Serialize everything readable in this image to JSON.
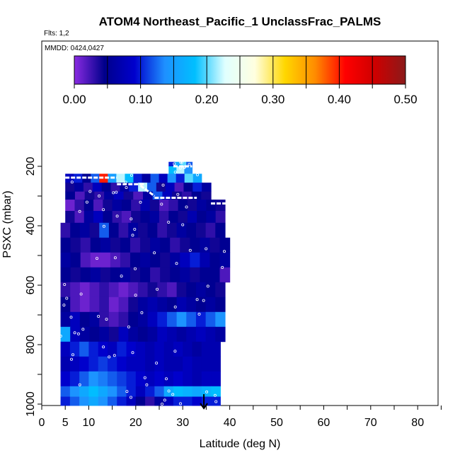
{
  "chart_data": {
    "type": "heatmap",
    "title": "ATOM4 Northeast_Pacific_1 UnclassFrac_PALMS",
    "flights_note": "Flts: 1,2",
    "dates_note": "MMDD: 0424,0427",
    "xlabel": "Latitude (deg N)",
    "ylabel": "PSXC (mbar)",
    "xlim": [
      0,
      85
    ],
    "ylim": [
      1010,
      120
    ],
    "x_ticks": [
      0,
      5,
      10,
      20,
      30,
      40,
      50,
      60,
      70,
      80
    ],
    "y_ticks": [
      200,
      400,
      600,
      800,
      1000
    ],
    "colorbar": {
      "range": [
        0.0,
        0.5
      ],
      "tick_values": [
        0.0,
        0.1,
        0.2,
        0.3,
        0.4,
        0.5
      ],
      "tick_labels": [
        "0.00",
        "0.10",
        "0.20",
        "0.30",
        "0.40",
        "0.50"
      ],
      "colors": [
        "#8a2be2",
        "#00008b",
        "#0000cd",
        "#1e90ff",
        "#00bfff",
        "#e0ffff",
        "#ffffe0",
        "#ffd700",
        "#ff8c00",
        "#ff0000",
        "#cd0000",
        "#8b1a1a"
      ]
    },
    "arrow_marker": {
      "latitude": 34.5,
      "pressure": 1000
    },
    "rows": [
      {
        "p": [
          185,
          200
        ],
        "lat": [
          27,
          32
        ],
        "values": [
          0.1,
          0.16,
          0.2,
          0.12
        ]
      },
      {
        "p": [
          200,
          225
        ],
        "lat": [
          27,
          32
        ],
        "values": [
          0.18,
          0.22,
          0.14
        ]
      },
      {
        "p": [
          225,
          255
        ],
        "lat": [
          5,
          34
        ],
        "values": [
          0.08,
          0.1,
          0.05,
          0.12,
          0.4,
          0.15,
          0.22,
          0.18,
          0.1,
          0.06,
          0.12,
          0.08,
          0.14,
          0.1,
          0.2,
          0.16
        ]
      },
      {
        "p": [
          255,
          285
        ],
        "lat": [
          5,
          36
        ],
        "values": [
          0.04,
          0.06,
          0.03,
          0.08,
          0.05,
          0.03,
          0.06,
          0.1,
          0.22,
          0.12,
          0.04,
          0.08,
          0.02,
          0.05,
          0.1,
          0.06
        ]
      },
      {
        "p": [
          285,
          312
        ],
        "lat": [
          5,
          36
        ],
        "values": [
          0.05,
          0.02,
          0.04,
          0.03,
          0.06,
          0.08,
          0.04,
          0.02,
          0.06,
          0.12,
          0.08,
          0.04,
          0.03,
          0.05,
          0.04
        ]
      },
      {
        "p": [
          312,
          350
        ],
        "lat": [
          5,
          39
        ],
        "values": [
          0.01,
          0.03,
          0.05,
          0.02,
          0.04,
          0.06,
          0.05,
          0.03,
          0.07,
          0.04,
          0.02,
          0.03,
          0.05,
          0.04,
          0.06,
          0.05,
          0.04
        ]
      },
      {
        "p": [
          350,
          390
        ],
        "lat": [
          5,
          39
        ],
        "values": [
          0.04,
          0.02,
          0.06,
          0.08,
          0.05,
          0.03,
          0.02,
          0.04,
          0.05,
          0.06,
          0.03,
          0.05,
          0.04,
          0.07,
          0.05,
          0.06,
          0.03
        ]
      },
      {
        "p": [
          390,
          440
        ],
        "lat": [
          4,
          39
        ],
        "values": [
          0.03,
          0.05,
          0.06,
          0.04,
          0.12,
          0.05,
          0.03,
          0.06,
          0.04,
          0.05,
          0.03,
          0.04,
          0.06,
          0.05,
          0.04,
          0.03,
          0.05
        ]
      },
      {
        "p": [
          440,
          490
        ],
        "lat": [
          4,
          40
        ],
        "values": [
          0.05,
          0.04,
          0.03,
          0.05,
          0.06,
          0.04,
          0.05,
          0.03,
          0.04,
          0.06,
          0.05,
          0.03,
          0.04,
          0.05,
          0.06,
          0.04,
          0.05
        ]
      },
      {
        "p": [
          490,
          540
        ],
        "lat": [
          4,
          40
        ],
        "values": [
          0.06,
          0.05,
          0.02,
          0.01,
          0.01,
          0.02,
          0.03,
          0.05,
          0.06,
          0.05,
          0.04,
          0.06,
          0.08,
          0.1,
          0.07,
          0.05,
          0.06
        ]
      },
      {
        "p": [
          540,
          590
        ],
        "lat": [
          4,
          40
        ],
        "values": [
          0.05,
          0.04,
          0.05,
          0.06,
          0.04,
          0.05,
          0.06,
          0.04,
          0.05,
          0.03,
          0.04,
          0.05,
          0.06,
          0.04,
          0.05,
          0.05,
          0.02
        ]
      },
      {
        "p": [
          590,
          640
        ],
        "lat": [
          4,
          39
        ],
        "values": [
          0.03,
          0.02,
          0.01,
          0.02,
          0.03,
          0.02,
          0.01,
          0.02,
          0.03,
          0.04,
          0.03,
          0.02,
          0.04,
          0.05,
          0.06,
          0.05,
          0.04
        ]
      },
      {
        "p": [
          640,
          690
        ],
        "lat": [
          4,
          39
        ],
        "values": [
          0.05,
          0.02,
          0.01,
          0.02,
          0.03,
          0.01,
          0.02,
          0.04,
          0.06,
          0.07,
          0.06,
          0.05,
          0.07,
          0.06,
          0.05,
          0.06,
          0.05
        ]
      },
      {
        "p": [
          690,
          740
        ],
        "lat": [
          4,
          39
        ],
        "values": [
          0.06,
          0.08,
          0.05,
          0.06,
          0.03,
          0.02,
          0.03,
          0.05,
          0.06,
          0.08,
          0.1,
          0.12,
          0.14,
          0.12,
          0.1,
          0.12,
          0.14
        ]
      },
      {
        "p": [
          740,
          790
        ],
        "lat": [
          4,
          39
        ],
        "values": [
          0.16,
          0.08,
          0.06,
          0.05,
          0.06,
          0.04,
          0.08,
          0.06,
          0.05,
          0.06,
          0.08,
          0.07,
          0.06,
          0.07,
          0.08,
          0.07,
          0.06
        ]
      },
      {
        "p": [
          790,
          840
        ],
        "lat": [
          4,
          38
        ],
        "values": [
          0.08,
          0.1,
          0.12,
          0.1,
          0.09,
          0.08,
          0.1,
          0.09,
          0.08,
          0.07,
          0.08,
          0.07,
          0.08,
          0.07,
          0.06,
          0.07,
          0.07
        ]
      },
      {
        "p": [
          840,
          890
        ],
        "lat": [
          4,
          38
        ],
        "values": [
          0.07,
          0.08,
          0.09,
          0.1,
          0.11,
          0.1,
          0.09,
          0.08,
          0.08,
          0.07,
          0.08,
          0.07,
          0.07,
          0.08,
          0.07,
          0.07,
          0.07
        ]
      },
      {
        "p": [
          890,
          940
        ],
        "lat": [
          4,
          38
        ],
        "values": [
          0.09,
          0.1,
          0.12,
          0.14,
          0.13,
          0.12,
          0.11,
          0.1,
          0.09,
          0.08,
          0.09,
          0.08,
          0.09,
          0.08,
          0.07,
          0.08,
          0.08
        ]
      },
      {
        "p": [
          940,
          975
        ],
        "lat": [
          4,
          38
        ],
        "values": [
          0.12,
          0.14,
          0.16,
          0.18,
          0.16,
          0.14,
          0.12,
          0.1,
          0.08,
          0.1,
          0.12,
          0.16,
          0.18,
          0.17,
          0.16,
          0.17,
          0.18
        ]
      },
      {
        "p": [
          975,
          1005
        ],
        "lat": [
          4,
          38
        ],
        "values": [
          0.1,
          0.12,
          0.14,
          0.16,
          0.14,
          0.12,
          0.1,
          0.08,
          0.05,
          0.03,
          0.06,
          0.08,
          0.1,
          0.1,
          0.09,
          0.1,
          0.1
        ]
      }
    ],
    "track_segments": [
      {
        "lat": [
          5,
          16
        ],
        "p": [
          238,
          238
        ]
      },
      {
        "lat": [
          16,
          22
        ],
        "p": [
          260,
          260
        ]
      },
      {
        "lat": [
          21,
          24
        ],
        "p": [
          265,
          300
        ]
      },
      {
        "lat": [
          24,
          33
        ],
        "p": [
          306,
          306
        ]
      },
      {
        "lat": [
          28,
          32
        ],
        "p": [
          200,
          200
        ]
      },
      {
        "lat": [
          36,
          40
        ],
        "p": [
          325,
          325
        ]
      }
    ]
  }
}
